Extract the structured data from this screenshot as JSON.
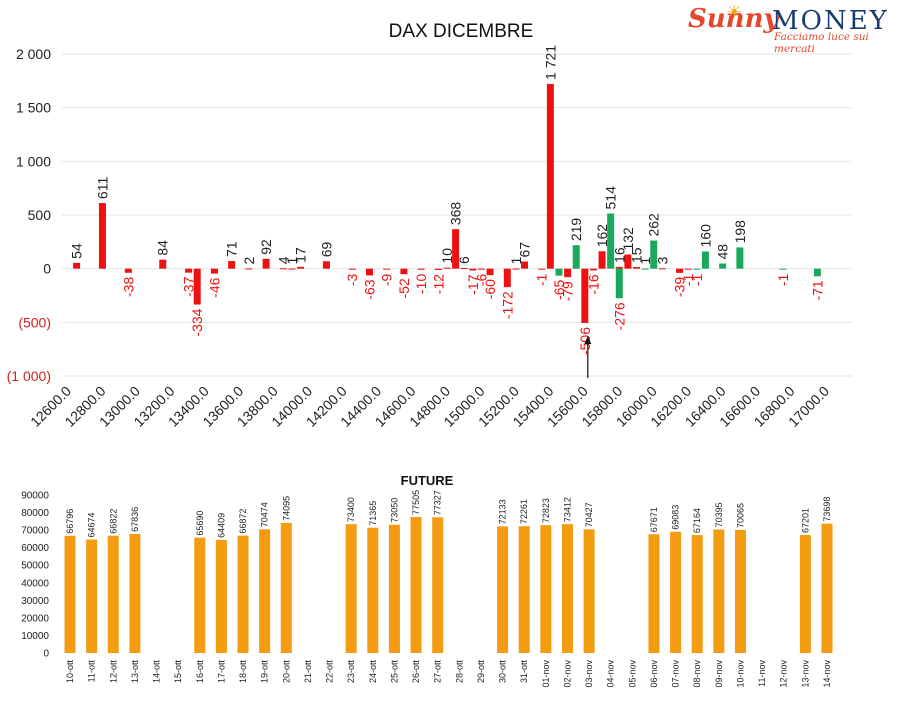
{
  "logo": {
    "brand_sunny": "Sunny",
    "brand_money": "MONEY",
    "tagline": "Facciamo luce sui mercati"
  },
  "colors": {
    "negative": "#ee1111",
    "positive": "#1aa85b",
    "future": "#f39c12",
    "grid": "#e6e6e6",
    "axis_negative_label": "#d42020"
  },
  "chart_data": [
    {
      "type": "bar",
      "title": "DAX DICEMBRE",
      "ylim": [
        -1000,
        2000
      ],
      "yticks": [
        {
          "value": 2000,
          "label": "2 000"
        },
        {
          "value": 1500,
          "label": "1 500"
        },
        {
          "value": 1000,
          "label": "1 000"
        },
        {
          "value": 500,
          "label": "500"
        },
        {
          "value": 0,
          "label": "0"
        },
        {
          "value": -500,
          "label": "(500)"
        },
        {
          "value": -1000,
          "label": "(1 000)"
        }
      ],
      "xlim": [
        12600,
        17000
      ],
      "xtick_labels": [
        "12600.0",
        "12800.0",
        "13000.0",
        "13200.0",
        "13400.0",
        "13600.0",
        "13800.0",
        "14000.0",
        "14200.0",
        "14400.0",
        "14600.0",
        "14800.0",
        "15000.0",
        "15200.0",
        "15400.0",
        "15600.0",
        "15800.0",
        "16000.0",
        "16200.0",
        "16400.0",
        "16600.0",
        "16800.0",
        "17000.0"
      ],
      "grid": true,
      "annotation": "arrow pointing up at strike 15600",
      "series": [
        {
          "color_key": "negative",
          "points": [
            {
              "x": 12650,
              "y": 54,
              "label": "54"
            },
            {
              "x": 12800,
              "y": 611,
              "label": "611"
            },
            {
              "x": 12950,
              "y": -38,
              "label": "-38"
            },
            {
              "x": 13150,
              "y": 84,
              "label": "84"
            },
            {
              "x": 13300,
              "y": -37,
              "label": "-37"
            },
            {
              "x": 13350,
              "y": -334,
              "label": "-334"
            },
            {
              "x": 13450,
              "y": -46,
              "label": "-46"
            },
            {
              "x": 13550,
              "y": 71,
              "label": "71"
            },
            {
              "x": 13650,
              "y": 2,
              "label": "2"
            },
            {
              "x": 13750,
              "y": 92,
              "label": "92"
            },
            {
              "x": 13850,
              "y": 4,
              "label": "4"
            },
            {
              "x": 13900,
              "y": 1,
              "label": "1"
            },
            {
              "x": 13950,
              "y": 17,
              "label": "17"
            },
            {
              "x": 14100,
              "y": 69,
              "label": "69"
            },
            {
              "x": 14250,
              "y": -3,
              "label": "-3"
            },
            {
              "x": 14350,
              "y": -63,
              "label": "-63"
            },
            {
              "x": 14450,
              "y": -9,
              "label": "-9"
            },
            {
              "x": 14550,
              "y": -52,
              "label": "-52"
            },
            {
              "x": 14650,
              "y": -10,
              "label": "-10"
            },
            {
              "x": 14750,
              "y": -12,
              "label": "-12"
            },
            {
              "x": 14800,
              "y": 10,
              "label": "10"
            },
            {
              "x": 14850,
              "y": 368,
              "label": "368"
            },
            {
              "x": 14900,
              "y": 6,
              "label": "6"
            },
            {
              "x": 14950,
              "y": -17,
              "label": "-17"
            },
            {
              "x": 15000,
              "y": -6,
              "label": "-6"
            },
            {
              "x": 15050,
              "y": -60,
              "label": "-60"
            },
            {
              "x": 15150,
              "y": -172,
              "label": "-172"
            },
            {
              "x": 15200,
              "y": 1,
              "label": "1"
            },
            {
              "x": 15250,
              "y": 67,
              "label": "67"
            },
            {
              "x": 15350,
              "y": -1,
              "label": "-1"
            },
            {
              "x": 15400,
              "y": 1721,
              "label": "1 721"
            },
            {
              "x": 15500,
              "y": -79,
              "label": "-79"
            },
            {
              "x": 15600,
              "y": -506,
              "label": "-506"
            },
            {
              "x": 15650,
              "y": -16,
              "label": "-16"
            },
            {
              "x": 15700,
              "y": 162,
              "label": "162"
            },
            {
              "x": 15800,
              "y": 16,
              "label": "16"
            },
            {
              "x": 15850,
              "y": 132,
              "label": "132"
            },
            {
              "x": 15900,
              "y": 15,
              "label": "15"
            },
            {
              "x": 16050,
              "y": 3,
              "label": "3"
            },
            {
              "x": 16150,
              "y": -39,
              "label": "-39"
            },
            {
              "x": 16200,
              "y": -1,
              "label": "-1"
            }
          ]
        },
        {
          "color_key": "positive",
          "points": [
            {
              "x": 15450,
              "y": -65,
              "label": "-65"
            },
            {
              "x": 15550,
              "y": 219,
              "label": "219"
            },
            {
              "x": 15750,
              "y": 514,
              "label": "514"
            },
            {
              "x": 15800,
              "y": -276,
              "label": "-276"
            },
            {
              "x": 15950,
              "y": 1,
              "label": "1"
            },
            {
              "x": 16000,
              "y": 262,
              "label": "262"
            },
            {
              "x": 16250,
              "y": -1,
              "label": "-1"
            },
            {
              "x": 16300,
              "y": 160,
              "label": "160"
            },
            {
              "x": 16400,
              "y": 48,
              "label": "48"
            },
            {
              "x": 16500,
              "y": 198,
              "label": "198"
            },
            {
              "x": 16750,
              "y": -1,
              "label": "-1"
            },
            {
              "x": 16950,
              "y": -71,
              "label": "-71"
            }
          ]
        }
      ]
    },
    {
      "type": "bar",
      "title": "FUTURE",
      "ylim": [
        0,
        90000
      ],
      "yticks": [
        0,
        10000,
        20000,
        30000,
        40000,
        50000,
        60000,
        70000,
        80000,
        90000
      ],
      "categories": [
        "10-ott",
        "11-ott",
        "12-ott",
        "13-ott",
        "14-ott",
        "15-ott",
        "16-ott",
        "17-ott",
        "18-ott",
        "19-ott",
        "20-ott",
        "21-ott",
        "22-ott",
        "23-ott",
        "24-ott",
        "25-ott",
        "26-ott",
        "27-ott",
        "28-ott",
        "29-ott",
        "30-ott",
        "31-ott",
        "01-nov",
        "02-nov",
        "03-nov",
        "04-nov",
        "05-nov",
        "06-nov",
        "07-nov",
        "08-nov",
        "09-nov",
        "10-nov",
        "11-nov",
        "12-nov",
        "13-nov",
        "14-nov"
      ],
      "values": [
        66796,
        64674,
        66822,
        67836,
        null,
        null,
        65690,
        64409,
        66872,
        70474,
        74095,
        null,
        null,
        73400,
        71365,
        73050,
        77505,
        77327,
        null,
        null,
        72133,
        72261,
        72823,
        73412,
        70427,
        null,
        null,
        67671,
        69083,
        67164,
        70395,
        70065,
        null,
        null,
        67201,
        73698
      ],
      "value_labels": [
        "66796",
        "64674",
        "66822",
        "67836",
        "",
        "",
        "65690",
        "64409",
        "66872",
        "70474",
        "74095",
        "",
        "",
        "73400",
        "71365",
        "73050",
        "77505",
        "77327",
        "",
        "",
        "72133",
        "72261",
        "72823",
        "73412",
        "70427",
        "",
        "",
        "67671",
        "69083",
        "67164",
        "70395",
        "70065",
        "",
        "",
        "67201",
        "73698"
      ],
      "grid": false
    }
  ]
}
